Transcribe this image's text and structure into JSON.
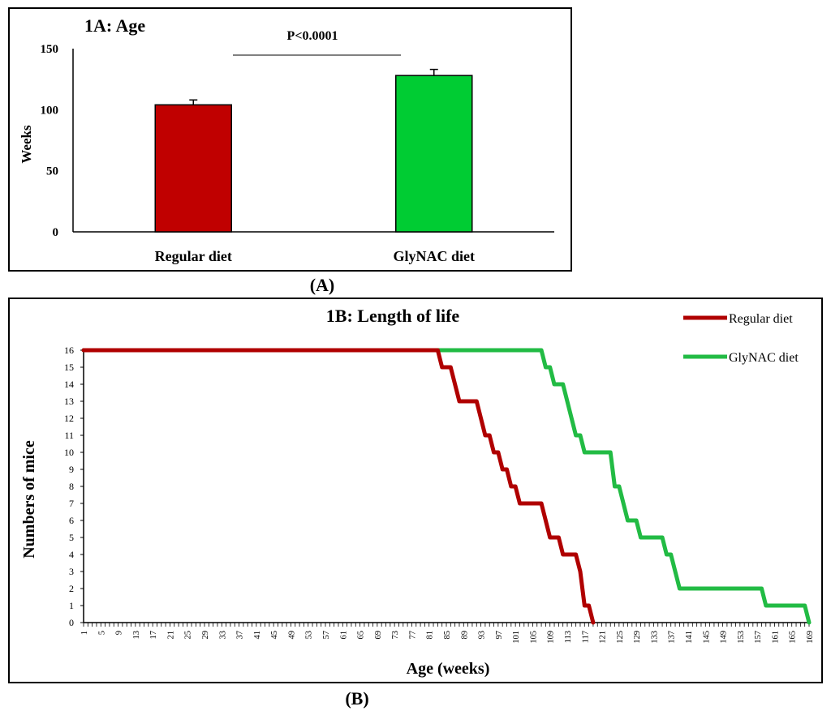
{
  "panel_a_label": "(A)",
  "panel_b_label": "(B)",
  "chart_data": [
    {
      "type": "bar",
      "title": "1A: Age",
      "categories": [
        "Regular diet",
        "GlyNAC diet"
      ],
      "values": [
        104,
        128
      ],
      "errors": [
        4,
        5
      ],
      "colors": [
        "#c00000",
        "#00cc33"
      ],
      "ylabel": "Weeks",
      "xlabel": "",
      "ylim": [
        0,
        150
      ],
      "yticks": [
        0,
        50,
        100,
        150
      ],
      "annotation": "P<0.0001",
      "legend": "none",
      "grid": false
    },
    {
      "type": "line",
      "title": "1B: Length of life",
      "xlabel": "Age (weeks)",
      "ylabel": "Numbers of mice",
      "xlim": [
        1,
        169
      ],
      "ylim": [
        0,
        16
      ],
      "xticks": [
        1,
        5,
        9,
        13,
        17,
        21,
        25,
        29,
        33,
        37,
        41,
        45,
        49,
        53,
        57,
        61,
        65,
        69,
        73,
        77,
        81,
        85,
        89,
        93,
        97,
        101,
        105,
        109,
        113,
        117,
        121,
        125,
        129,
        133,
        137,
        141,
        145,
        149,
        153,
        157,
        161,
        165,
        169
      ],
      "yticks": [
        0,
        1,
        2,
        3,
        4,
        5,
        6,
        7,
        8,
        9,
        10,
        11,
        12,
        13,
        14,
        15,
        16
      ],
      "legend": "top-right",
      "grid": false,
      "series": [
        {
          "name": "GlyNAC diet",
          "color": "#22bb44",
          "points": [
            [
              1,
              16
            ],
            [
              107,
              16
            ],
            [
              108,
              15
            ],
            [
              109,
              15
            ],
            [
              110,
              14
            ],
            [
              112,
              14
            ],
            [
              113,
              13
            ],
            [
              114,
              12
            ],
            [
              115,
              11
            ],
            [
              116,
              11
            ],
            [
              117,
              10
            ],
            [
              123,
              10
            ],
            [
              124,
              8
            ],
            [
              125,
              8
            ],
            [
              126,
              7
            ],
            [
              127,
              6
            ],
            [
              129,
              6
            ],
            [
              130,
              5
            ],
            [
              135,
              5
            ],
            [
              136,
              4
            ],
            [
              137,
              4
            ],
            [
              139,
              2
            ],
            [
              158,
              2
            ],
            [
              159,
              1
            ],
            [
              168,
              1
            ],
            [
              169,
              0
            ]
          ]
        },
        {
          "name": "Regular diet",
          "color": "#b00000",
          "points": [
            [
              1,
              16
            ],
            [
              83,
              16
            ],
            [
              84,
              15
            ],
            [
              86,
              15
            ],
            [
              88,
              13
            ],
            [
              92,
              13
            ],
            [
              93,
              12
            ],
            [
              94,
              11
            ],
            [
              95,
              11
            ],
            [
              96,
              10
            ],
            [
              97,
              10
            ],
            [
              98,
              9
            ],
            [
              99,
              9
            ],
            [
              100,
              8
            ],
            [
              101,
              8
            ],
            [
              102,
              7
            ],
            [
              107,
              7
            ],
            [
              109,
              5
            ],
            [
              111,
              5
            ],
            [
              112,
              4
            ],
            [
              115,
              4
            ],
            [
              116,
              3
            ],
            [
              117,
              1
            ],
            [
              118,
              1
            ],
            [
              119,
              0
            ]
          ]
        }
      ]
    }
  ]
}
